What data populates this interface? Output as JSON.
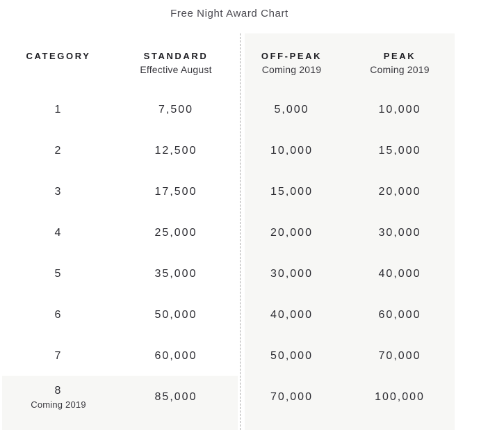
{
  "title": "Free Night Award Chart",
  "colors": {
    "panel_bg": "#f7f7f5",
    "dashed_divider": "#adadad",
    "header_text": "#1e1e23",
    "subheader_text": "#3a393f",
    "value_text": "#2c2c32",
    "title_text": "#4a4950"
  },
  "table": {
    "headers": {
      "category": {
        "label": "CATEGORY",
        "sublabel": ""
      },
      "standard": {
        "label": "STANDARD",
        "sublabel": "Effective August"
      },
      "offpeak": {
        "label": "OFF-PEAK",
        "sublabel": "Coming 2019"
      },
      "peak": {
        "label": "PEAK",
        "sublabel": "Coming 2019"
      }
    },
    "rows": [
      {
        "category": "1",
        "category_note": "",
        "standard": "7,500",
        "offpeak": "5,000",
        "peak": "10,000"
      },
      {
        "category": "2",
        "category_note": "",
        "standard": "12,500",
        "offpeak": "10,000",
        "peak": "15,000"
      },
      {
        "category": "3",
        "category_note": "",
        "standard": "17,500",
        "offpeak": "15,000",
        "peak": "20,000"
      },
      {
        "category": "4",
        "category_note": "",
        "standard": "25,000",
        "offpeak": "20,000",
        "peak": "30,000"
      },
      {
        "category": "5",
        "category_note": "",
        "standard": "35,000",
        "offpeak": "30,000",
        "peak": "40,000"
      },
      {
        "category": "6",
        "category_note": "",
        "standard": "50,000",
        "offpeak": "40,000",
        "peak": "60,000"
      },
      {
        "category": "7",
        "category_note": "",
        "standard": "60,000",
        "offpeak": "50,000",
        "peak": "70,000"
      },
      {
        "category": "8",
        "category_note": "Coming 2019",
        "standard": "85,000",
        "offpeak": "70,000",
        "peak": "100,000"
      }
    ]
  },
  "chart_data": {
    "type": "table",
    "title": "Free Night Award Chart",
    "columns": [
      "CATEGORY",
      "STANDARD (Effective August)",
      "OFF-PEAK (Coming 2019)",
      "PEAK (Coming 2019)"
    ],
    "rows": [
      [
        "1",
        7500,
        5000,
        10000
      ],
      [
        "2",
        12500,
        10000,
        15000
      ],
      [
        "3",
        17500,
        15000,
        20000
      ],
      [
        "4",
        25000,
        20000,
        30000
      ],
      [
        "5",
        35000,
        30000,
        40000
      ],
      [
        "6",
        50000,
        40000,
        60000
      ],
      [
        "7",
        60000,
        50000,
        70000
      ],
      [
        "8 (Coming 2019)",
        85000,
        70000,
        100000
      ]
    ]
  }
}
